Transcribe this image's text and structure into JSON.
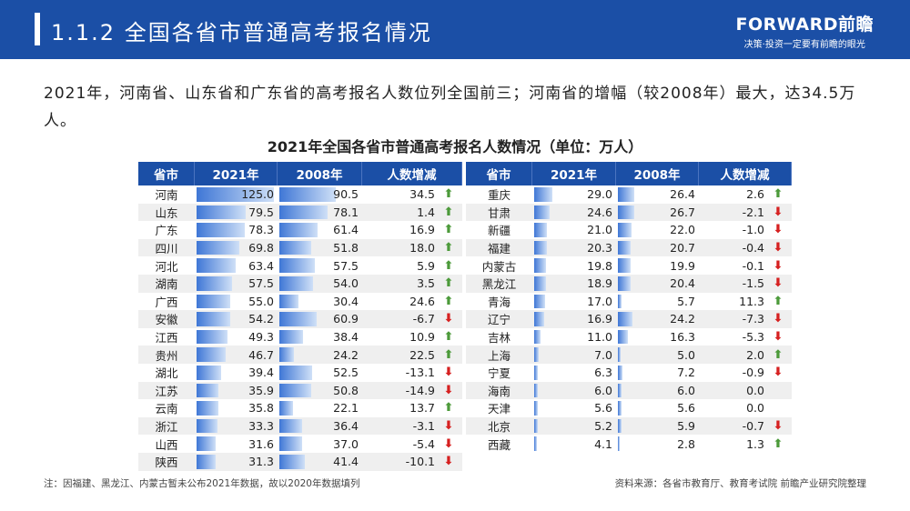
{
  "header": {
    "title": "1.1.2 全国各省市普通高考报名情况",
    "logo": "FORWARD前瞻",
    "slogan": "决策·投资一定要有前瞻的眼光",
    "accent": "#1b4fa6"
  },
  "summary": "2021年，河南省、山东省和广东省的高考报名人数位列全国前三；河南省的增幅（较2008年）最大，达34.5万人。",
  "table": {
    "title": "2021年全国各省市普通高考报名人数情况（单位：万人）",
    "columns": [
      "省市",
      "2021年",
      "2008年",
      "人数增减"
    ],
    "left": [
      [
        "河南",
        "125.0",
        "90.5",
        "34.5",
        "up"
      ],
      [
        "山东",
        "79.5",
        "78.1",
        "1.4",
        "up"
      ],
      [
        "广东",
        "78.3",
        "61.4",
        "16.9",
        "up"
      ],
      [
        "四川",
        "69.8",
        "51.8",
        "18.0",
        "up"
      ],
      [
        "河北",
        "63.4",
        "57.5",
        "5.9",
        "up"
      ],
      [
        "湖南",
        "57.5",
        "54.0",
        "3.5",
        "up"
      ],
      [
        "广西",
        "55.0",
        "30.4",
        "24.6",
        "up"
      ],
      [
        "安徽",
        "54.2",
        "60.9",
        "-6.7",
        "down"
      ],
      [
        "江西",
        "49.3",
        "38.4",
        "10.9",
        "up"
      ],
      [
        "贵州",
        "46.7",
        "24.2",
        "22.5",
        "up"
      ],
      [
        "湖北",
        "39.4",
        "52.5",
        "-13.1",
        "down"
      ],
      [
        "江苏",
        "35.9",
        "50.8",
        "-14.9",
        "down"
      ],
      [
        "云南",
        "35.8",
        "22.1",
        "13.7",
        "up"
      ],
      [
        "浙江",
        "33.3",
        "36.4",
        "-3.1",
        "down"
      ],
      [
        "山西",
        "31.6",
        "37.0",
        "-5.4",
        "down"
      ],
      [
        "陕西",
        "31.3",
        "41.4",
        "-10.1",
        "down"
      ]
    ],
    "right": [
      [
        "重庆",
        "29.0",
        "26.4",
        "2.6",
        "up"
      ],
      [
        "甘肃",
        "24.6",
        "26.7",
        "-2.1",
        "down"
      ],
      [
        "新疆",
        "21.0",
        "22.0",
        "-1.0",
        "down"
      ],
      [
        "福建",
        "20.3",
        "20.7",
        "-0.4",
        "down"
      ],
      [
        "内蒙古",
        "19.8",
        "19.9",
        "-0.1",
        "down"
      ],
      [
        "黑龙江",
        "18.9",
        "20.4",
        "-1.5",
        "down"
      ],
      [
        "青海",
        "17.0",
        "5.7",
        "11.3",
        "up"
      ],
      [
        "辽宁",
        "16.9",
        "24.2",
        "-7.3",
        "down"
      ],
      [
        "吉林",
        "11.0",
        "16.3",
        "-5.3",
        "down"
      ],
      [
        "上海",
        "7.0",
        "5.0",
        "2.0",
        "up"
      ],
      [
        "宁夏",
        "6.3",
        "7.2",
        "-0.9",
        "down"
      ],
      [
        "海南",
        "6.0",
        "6.0",
        "0.0",
        ""
      ],
      [
        "天津",
        "5.6",
        "5.6",
        "0.0",
        ""
      ],
      [
        "北京",
        "5.2",
        "5.9",
        "-0.7",
        "down"
      ],
      [
        "西藏",
        "4.1",
        "2.8",
        "1.3",
        "up"
      ]
    ],
    "colors": {
      "up": "#4c9a3a",
      "down": "#d62020"
    }
  },
  "footer": {
    "note": "注：因福建、黑龙江、内蒙古暂未公布2021年数据，故以2020年数据填列",
    "source": "资料来源：各省市教育厅、教育考试院 前瞻产业研究院整理"
  }
}
